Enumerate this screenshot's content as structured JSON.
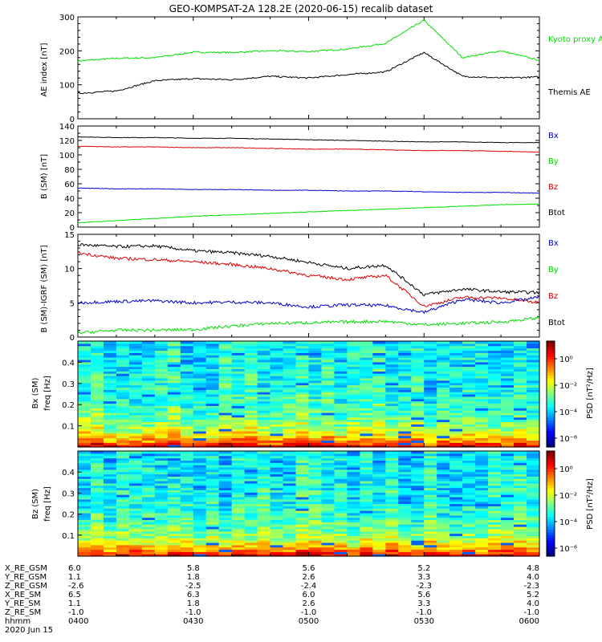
{
  "title": "GEO-KOMPSAT-2A 128.2E (2020-06-15) recalib dataset",
  "colors": {
    "black": "#000000",
    "green": "#00dd00",
    "red": "#dd0000",
    "blue": "#0000cc"
  },
  "chart_data": [
    {
      "type": "line",
      "ylabel": "AE index [nT]",
      "ylim": [
        0,
        300
      ],
      "yticks": [
        "0",
        "100",
        "200",
        "300"
      ],
      "x": [
        "0400",
        "0410",
        "0420",
        "0430",
        "0440",
        "0450",
        "0500",
        "0510",
        "0520",
        "0530",
        "0540",
        "0550",
        "0600"
      ],
      "series": [
        {
          "name": "Kyoto proxy AE",
          "color": "#00dd00",
          "values": [
            170,
            178,
            180,
            196,
            195,
            200,
            198,
            205,
            222,
            290,
            180,
            200,
            172
          ]
        },
        {
          "name": "Themis AE",
          "color": "#000000",
          "values": [
            75,
            82,
            112,
            118,
            115,
            125,
            120,
            130,
            138,
            195,
            125,
            120,
            123
          ]
        }
      ]
    },
    {
      "type": "line",
      "ylabel": "B (SM) [nT]",
      "ylim": [
        0,
        140
      ],
      "yticks": [
        "0",
        "20",
        "40",
        "60",
        "80",
        "100",
        "120",
        "140"
      ],
      "legend": [
        "Bx",
        "By",
        "Bz",
        "Btot"
      ],
      "series": [
        {
          "name": "Btot",
          "color": "#000000",
          "values": [
            125,
            124,
            124,
            123,
            123,
            122,
            121,
            120,
            119,
            118,
            118,
            117,
            117
          ]
        },
        {
          "name": "Bz",
          "color": "#dd0000",
          "values": [
            112,
            111,
            111,
            110,
            110,
            109,
            108,
            108,
            107,
            106,
            106,
            105,
            104
          ]
        },
        {
          "name": "Bx",
          "color": "#0000cc",
          "values": [
            54,
            53,
            53,
            52,
            52,
            51,
            51,
            50,
            50,
            49,
            48,
            48,
            47
          ]
        },
        {
          "name": "By",
          "color": "#00dd00",
          "values": [
            6,
            9,
            12,
            15,
            17,
            19,
            21,
            23,
            25,
            27,
            29,
            31,
            32
          ]
        }
      ]
    },
    {
      "type": "line",
      "ylabel": "B (SM)-IGRF (SM) [nT]",
      "ylim": [
        0,
        15
      ],
      "yticks": [
        "0",
        "5",
        "10",
        "15"
      ],
      "legend": [
        "Bx",
        "By",
        "Bz",
        "Btot"
      ],
      "series": [
        {
          "name": "Btot",
          "color": "#000000",
          "values": [
            13.5,
            13.2,
            13.3,
            12.6,
            12.3,
            11.8,
            10.9,
            10.0,
            10.5,
            6.2,
            7.0,
            6.6,
            6.5
          ]
        },
        {
          "name": "Bz",
          "color": "#dd0000",
          "values": [
            12.3,
            11.5,
            11.3,
            11.0,
            10.6,
            10.0,
            9.0,
            8.4,
            9.0,
            4.5,
            5.8,
            5.7,
            5.0
          ]
        },
        {
          "name": "Bx",
          "color": "#0000cc",
          "values": [
            5.0,
            5.2,
            5.3,
            5.0,
            5.1,
            5.0,
            4.4,
            4.7,
            4.6,
            3.6,
            5.5,
            5.0,
            5.8
          ]
        },
        {
          "name": "By",
          "color": "#00dd00",
          "values": [
            0.6,
            1.0,
            1.0,
            1.1,
            1.6,
            2.0,
            2.1,
            2.2,
            2.3,
            1.8,
            2.0,
            2.2,
            2.8
          ]
        }
      ]
    },
    {
      "type": "heatmap",
      "panel_label": "Bx (SM)",
      "ylabel": "freq [Hz]",
      "ylim": [
        0,
        0.5
      ],
      "yticks": [
        "0.1",
        "0.2",
        "0.3",
        "0.4"
      ],
      "colorbar_label": "PSD [nT²/Hz]",
      "colorbar_ticks": [
        "10⁰",
        "10⁻²",
        "10⁻⁴",
        "10⁻⁶"
      ]
    },
    {
      "type": "heatmap",
      "panel_label": "Bz (SM)",
      "ylabel": "freq [Hz]",
      "ylim": [
        0,
        0.5
      ],
      "yticks": [
        "0.1",
        "0.2",
        "0.3",
        "0.4"
      ],
      "colorbar_label": "PSD [nT²/Hz]",
      "colorbar_ticks": [
        "10⁰",
        "10⁻²",
        "10⁻⁴",
        "10⁻⁶"
      ]
    }
  ],
  "orbit_table": {
    "labels": [
      "X_RE_GSM",
      "Y_RE_GSM",
      "Z_RE_GSM",
      "X_RE_SM",
      "Y_RE_SM",
      "Z_RE_SM",
      "hhmm"
    ],
    "columns": [
      [
        "6.0",
        "1.1",
        "-2.6",
        "6.5",
        "1.1",
        "-1.0",
        "0400"
      ],
      [
        "5.8",
        "1.8",
        "-2.5",
        "6.3",
        "1.8",
        "-1.0",
        "0430"
      ],
      [
        "5.6",
        "2.6",
        "-2.4",
        "6.0",
        "2.6",
        "-1.0",
        "0500"
      ],
      [
        "5.2",
        "3.3",
        "-2.3",
        "5.6",
        "3.3",
        "-1.0",
        "0530"
      ],
      [
        "4.8",
        "4.0",
        "-2.3",
        "5.2",
        "4.0",
        "-1.0",
        "0600"
      ]
    ],
    "date": "2020 Jun 15"
  }
}
